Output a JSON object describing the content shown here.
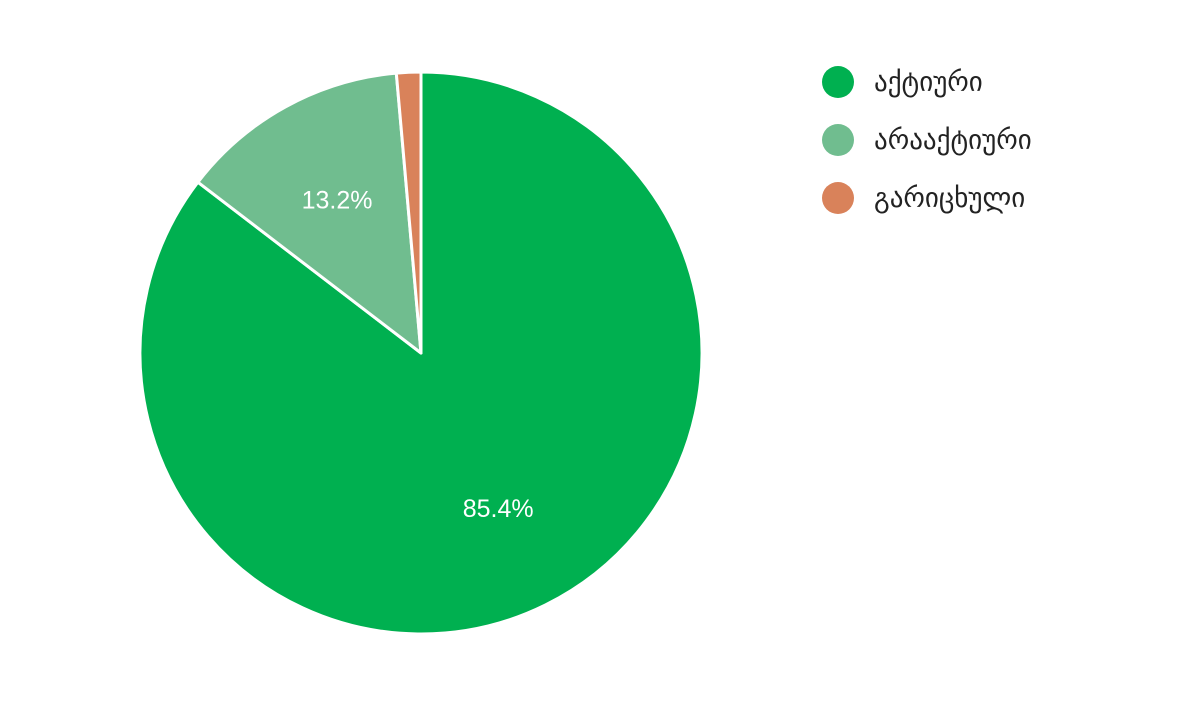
{
  "chart_data": {
    "type": "pie",
    "title": "",
    "legend_position": "right",
    "start_angle_deg": 0,
    "direction": "clockwise",
    "slices": [
      {
        "label": "აქტიური",
        "value": 85.4,
        "display": "85.4%",
        "color": "#00b050"
      },
      {
        "label": "არააქტიური",
        "value": 13.2,
        "display": "13.2%",
        "color": "#70bd8f"
      },
      {
        "label": "გარიცხული",
        "value": 1.4,
        "display": "",
        "color": "#d9825a"
      }
    ]
  }
}
